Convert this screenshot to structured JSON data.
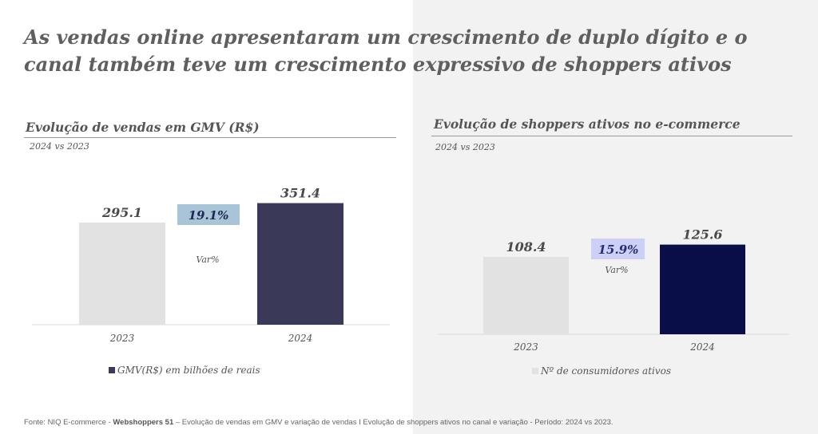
{
  "title": "As vendas online apresentaram um crescimento de duplo dígito e o canal também teve um crescimento expressivo de shoppers ativos",
  "footer": {
    "prefix": "Fonte: NIQ E-commerce - ",
    "bold": "Webshoppers 51",
    "rest": " – Evolução de vendas em GMV e variação de vendas I Evolução de shoppers ativos no canal e variação - Período: 2024 vs 2023."
  },
  "colors": {
    "bar_2023": "#e2e2e2",
    "gmv_2024": "#3a3a58",
    "shoppers_2024": "#0a0e48",
    "gmv_var_box": "#a9c4d6",
    "shoppers_var_box": "#ccd0f7"
  },
  "chart_data": [
    {
      "type": "bar",
      "title": "Evolução de vendas em GMV (R$)",
      "subtitle": "2024 vs 2023",
      "categories": [
        "2023",
        "2024"
      ],
      "values": [
        295.1,
        351.4
      ],
      "value_labels": [
        "295.1",
        "351.4"
      ],
      "variation": "19.1%",
      "variation_label": "Var%",
      "legend": "GMV(R$) em bilhões de reais"
    },
    {
      "type": "bar",
      "title": "Evolução de shoppers ativos no e-commerce",
      "subtitle": "2024 vs 2023",
      "categories": [
        "2023",
        "2024"
      ],
      "values": [
        108.4,
        125.6
      ],
      "value_labels": [
        "108.4",
        "125.6"
      ],
      "variation": "15.9%",
      "variation_label": "Var%",
      "legend": "Nº de consumidores ativos"
    }
  ]
}
